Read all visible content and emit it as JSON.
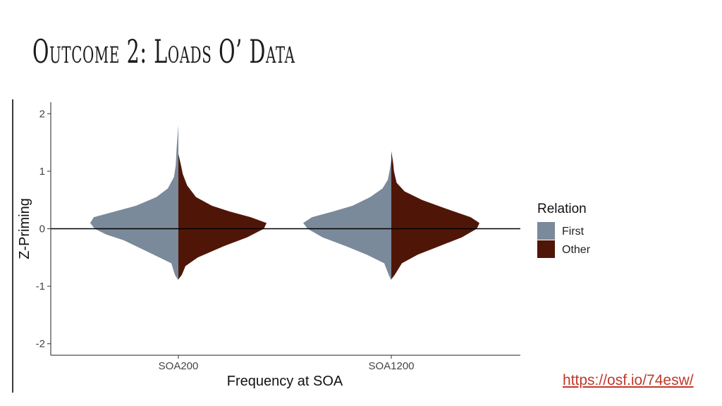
{
  "slide": {
    "title": "Outcome 2: Loads O’ Data",
    "link": "https://osf.io/74esw/"
  },
  "chart_data": {
    "type": "split-violin",
    "xlabel": "Frequency at SOA",
    "ylabel": "Z-Priming",
    "categories": [
      "SOA200",
      "SOA1200"
    ],
    "ylim": [
      -2.2,
      2.2
    ],
    "yticks": [
      -2,
      -1,
      0,
      1,
      2
    ],
    "reference_line_y": 0,
    "legend": {
      "title": "Relation",
      "position": "right",
      "entries": [
        {
          "label": "First",
          "color": "#7a8a9a"
        },
        {
          "label": "Other",
          "color": "#4f1608"
        }
      ]
    },
    "series": [
      {
        "name": "First",
        "side": "left",
        "color": "#7a8a9a",
        "groups": [
          {
            "category": "SOA200",
            "density": [
              [
                -0.9,
                0
              ],
              [
                -0.8,
                0.04
              ],
              [
                -0.6,
                0.08
              ],
              [
                -0.4,
                0.35
              ],
              [
                -0.2,
                0.62
              ],
              [
                -0.1,
                0.82
              ],
              [
                0,
                0.95
              ],
              [
                0.1,
                1
              ],
              [
                0.2,
                0.96
              ],
              [
                0.3,
                0.72
              ],
              [
                0.4,
                0.48
              ],
              [
                0.55,
                0.25
              ],
              [
                0.7,
                0.12
              ],
              [
                0.9,
                0.05
              ],
              [
                1.1,
                0.03
              ],
              [
                1.4,
                0.02
              ],
              [
                1.8,
                0
              ]
            ]
          },
          {
            "category": "SOA1200",
            "density": [
              [
                -0.9,
                0
              ],
              [
                -0.8,
                0.03
              ],
              [
                -0.6,
                0.08
              ],
              [
                -0.45,
                0.28
              ],
              [
                -0.3,
                0.52
              ],
              [
                -0.15,
                0.78
              ],
              [
                0,
                0.95
              ],
              [
                0.1,
                1
              ],
              [
                0.2,
                0.9
              ],
              [
                0.3,
                0.66
              ],
              [
                0.4,
                0.44
              ],
              [
                0.55,
                0.24
              ],
              [
                0.7,
                0.1
              ],
              [
                0.85,
                0.04
              ],
              [
                1.0,
                0.02
              ],
              [
                1.2,
                0
              ]
            ]
          }
        ]
      },
      {
        "name": "Other",
        "side": "right",
        "color": "#4f1608",
        "groups": [
          {
            "category": "SOA200",
            "density": [
              [
                -0.88,
                0
              ],
              [
                -0.8,
                0.04
              ],
              [
                -0.65,
                0.08
              ],
              [
                -0.5,
                0.22
              ],
              [
                -0.3,
                0.52
              ],
              [
                -0.15,
                0.78
              ],
              [
                0,
                0.97
              ],
              [
                0.1,
                1
              ],
              [
                0.2,
                0.82
              ],
              [
                0.3,
                0.58
              ],
              [
                0.4,
                0.38
              ],
              [
                0.55,
                0.2
              ],
              [
                0.75,
                0.1
              ],
              [
                0.95,
                0.05
              ],
              [
                1.1,
                0.03
              ],
              [
                1.3,
                0
              ]
            ]
          },
          {
            "category": "SOA1200",
            "density": [
              [
                -0.88,
                0
              ],
              [
                -0.8,
                0.04
              ],
              [
                -0.6,
                0.12
              ],
              [
                -0.45,
                0.3
              ],
              [
                -0.3,
                0.55
              ],
              [
                -0.15,
                0.8
              ],
              [
                0,
                0.97
              ],
              [
                0.1,
                1
              ],
              [
                0.2,
                0.9
              ],
              [
                0.35,
                0.62
              ],
              [
                0.5,
                0.35
              ],
              [
                0.65,
                0.15
              ],
              [
                0.8,
                0.06
              ],
              [
                1.0,
                0.03
              ],
              [
                1.15,
                0.02
              ],
              [
                1.35,
                0
              ]
            ]
          }
        ]
      }
    ]
  }
}
